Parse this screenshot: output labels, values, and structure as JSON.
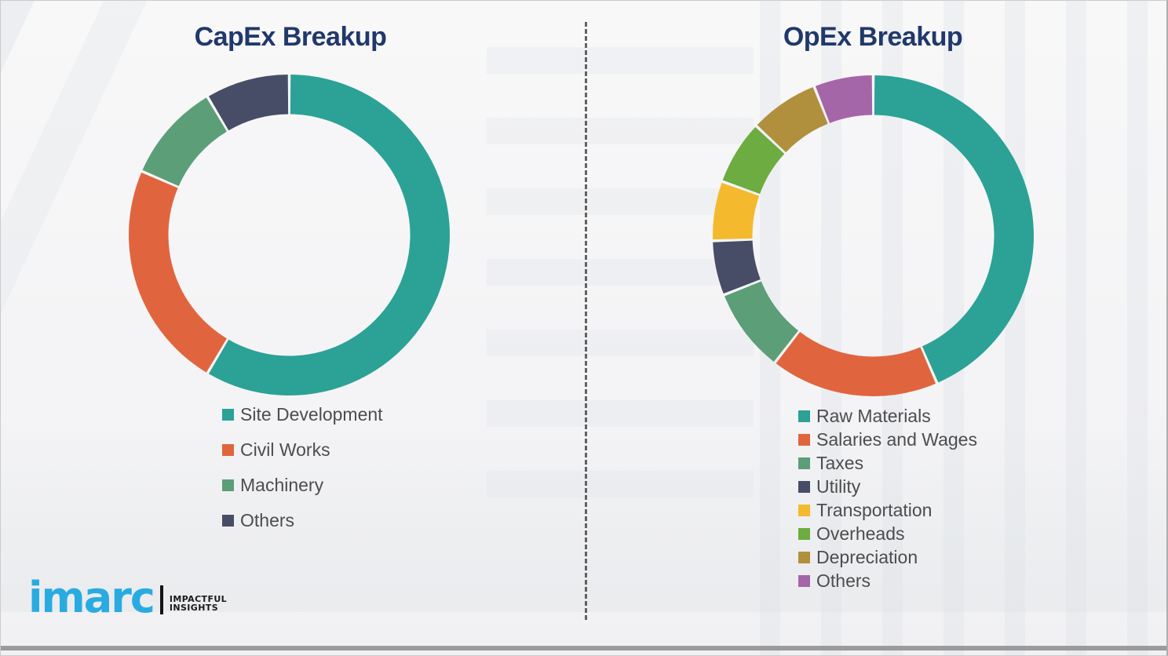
{
  "chart_data": [
    {
      "type": "donut",
      "title": "CapEx Breakup",
      "values_labeled_on_chart": false,
      "unit": "percent of total (estimated from arc angles)",
      "start_angle_deg": 0,
      "direction": "clockwise",
      "legend_position": "below",
      "segments": [
        {
          "label": "Site Development",
          "value": 58.5,
          "color": "#2BA295"
        },
        {
          "label": "Civil Works",
          "value": 23.0,
          "color": "#E0653E"
        },
        {
          "label": "Machinery",
          "value": 10.0,
          "color": "#5C9E77"
        },
        {
          "label": "Others",
          "value": 8.5,
          "color": "#484D67"
        }
      ]
    },
    {
      "type": "donut",
      "title": "OpEx Breakup",
      "values_labeled_on_chart": false,
      "unit": "percent of total (estimated from arc angles)",
      "start_angle_deg": 0,
      "direction": "clockwise",
      "legend_position": "below",
      "segments": [
        {
          "label": "Raw Materials",
          "value": 43.5,
          "color": "#2BA295"
        },
        {
          "label": "Salaries and Wages",
          "value": 17.0,
          "color": "#E0653E"
        },
        {
          "label": "Taxes",
          "value": 8.5,
          "color": "#5C9E77"
        },
        {
          "label": "Utility",
          "value": 5.5,
          "color": "#484D67"
        },
        {
          "label": "Transportation",
          "value": 6.0,
          "color": "#F5B92D"
        },
        {
          "label": "Overheads",
          "value": 6.5,
          "color": "#6CAC40"
        },
        {
          "label": "Depreciation",
          "value": 7.0,
          "color": "#B1903D"
        },
        {
          "label": "Others",
          "value": 6.0,
          "color": "#A566A8"
        }
      ]
    }
  ],
  "branding": {
    "logo_text": "imarc",
    "tagline_line1": "IMPACTFUL",
    "tagline_line2": "INSIGHTS"
  },
  "colors": {
    "title_text": "#21386B",
    "legend_text": "#4D4D4D",
    "divider": "#4A4A4A",
    "logo_blue": "#29ABE2",
    "logo_black": "#1A1A1A"
  }
}
